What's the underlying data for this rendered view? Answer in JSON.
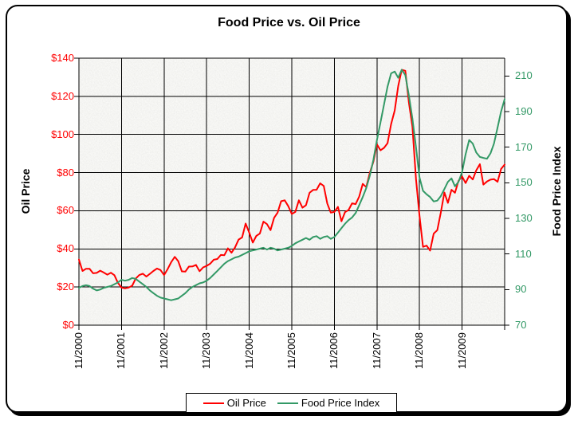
{
  "title": "Food Price vs. Oil Price",
  "colors": {
    "oil_line": "#FF0000",
    "food_line": "#339966",
    "left_axis_text": "#FF0000",
    "right_axis_text": "#339966",
    "gridlines": "#000000",
    "plot_background": "#E8E8E4"
  },
  "legend": {
    "items": [
      {
        "label": "Oil Price",
        "color": "#FF0000"
      },
      {
        "label": "Food Price Index",
        "color": "#339966"
      }
    ]
  },
  "chart_data": {
    "type": "line",
    "title": "Food Price vs. Oil Price",
    "grid": true,
    "legend_position": "bottom",
    "x_axis": {
      "tick_labels": [
        "11/2000",
        "11/2001",
        "11/2002",
        "11/2003",
        "11/2004",
        "11/2005",
        "11/2006",
        "11/2007",
        "11/2008",
        "11/2009"
      ],
      "start": "11/2000",
      "end": "11/2010",
      "interval": "monthly"
    },
    "left_axis": {
      "title": "Oil Price",
      "min": 0,
      "max": 140,
      "step": 20,
      "tick_labels": [
        "$0",
        "$20",
        "$40",
        "$60",
        "$80",
        "$100",
        "$120",
        "$140"
      ],
      "color": "#FF0000"
    },
    "right_axis": {
      "title": "Food Price Index",
      "min": 70,
      "max": 220,
      "step": 20,
      "tick_labels": [
        "70",
        "90",
        "110",
        "130",
        "150",
        "170",
        "190",
        "210"
      ],
      "color": "#339966"
    },
    "series": [
      {
        "name": "Oil Price",
        "axis": "left",
        "color": "#FF0000",
        "values": [
          34.4,
          28.4,
          29.6,
          29.6,
          27.2,
          27.4,
          28.6,
          27.6,
          26.5,
          27.5,
          26.2,
          22.2,
          19.7,
          19.3,
          19.7,
          20.7,
          24.4,
          26.3,
          27.0,
          25.5,
          26.9,
          28.4,
          29.7,
          28.9,
          26.3,
          29.4,
          33.0,
          35.8,
          33.5,
          28.2,
          28.1,
          30.7,
          30.8,
          31.6,
          28.3,
          30.3,
          31.1,
          32.2,
          34.3,
          34.7,
          36.8,
          36.7,
          40.3,
          38.0,
          40.8,
          44.9,
          46.0,
          53.3,
          48.5,
          43.3,
          46.8,
          48.0,
          54.3,
          53.0,
          49.8,
          56.3,
          59.0,
          65.0,
          65.5,
          62.4,
          58.3,
          59.4,
          65.5,
          61.6,
          62.9,
          69.4,
          70.9,
          71.0,
          74.4,
          73.0,
          63.8,
          59.0,
          59.4,
          62.0,
          54.5,
          59.3,
          60.4,
          63.9,
          63.5,
          67.5,
          74.1,
          72.4,
          79.9,
          85.8,
          94.8,
          91.7,
          93.0,
          95.4,
          105.5,
          112.6,
          125.4,
          133.9,
          133.4,
          116.7,
          104.1,
          76.6,
          57.3,
          41.1,
          41.7,
          39.1,
          48.0,
          49.8,
          59.0,
          69.6,
          64.1,
          71.0,
          69.4,
          75.7,
          78.0,
          74.5,
          78.3,
          76.4,
          81.2,
          84.4,
          73.7,
          75.3,
          76.3,
          76.6,
          75.2,
          81.9,
          84.2
        ]
      },
      {
        "name": "Food Price Index",
        "axis": "right",
        "color": "#339966",
        "values": [
          91.0,
          92.0,
          92.5,
          92.0,
          90.5,
          89.5,
          90.0,
          91.0,
          91.5,
          92.0,
          93.0,
          94.0,
          95.5,
          95.0,
          95.5,
          96.5,
          96.0,
          94.5,
          93.0,
          91.5,
          89.5,
          88.0,
          86.5,
          85.5,
          85.0,
          84.5,
          84.0,
          84.5,
          85.0,
          86.5,
          88.0,
          90.0,
          91.5,
          92.5,
          93.5,
          94.0,
          95.0,
          96.5,
          98.5,
          100.5,
          102.5,
          104.5,
          106.0,
          107.0,
          108.0,
          108.5,
          109.5,
          110.5,
          111.5,
          112.0,
          112.5,
          113.0,
          113.5,
          112.5,
          113.5,
          113.0,
          112.0,
          112.5,
          113.0,
          113.5,
          114.5,
          116.0,
          117.0,
          118.0,
          119.0,
          118.0,
          119.5,
          120.0,
          118.5,
          119.5,
          120.0,
          118.5,
          119.5,
          122.0,
          124.5,
          127.0,
          129.0,
          130.5,
          133.0,
          137.5,
          142.0,
          147.0,
          154.0,
          163.0,
          174.0,
          184.0,
          194.0,
          204.0,
          211.5,
          212.5,
          209.0,
          213.5,
          210.5,
          199.0,
          186.0,
          170.0,
          153.0,
          145.5,
          143.5,
          142.0,
          139.5,
          140.0,
          142.5,
          146.5,
          150.5,
          152.5,
          148.0,
          150.5,
          156.0,
          166.0,
          174.0,
          172.0,
          167.0,
          164.5,
          164.0,
          163.5,
          166.5,
          172.0,
          181.0,
          190.0,
          197.0
        ]
      }
    ]
  }
}
